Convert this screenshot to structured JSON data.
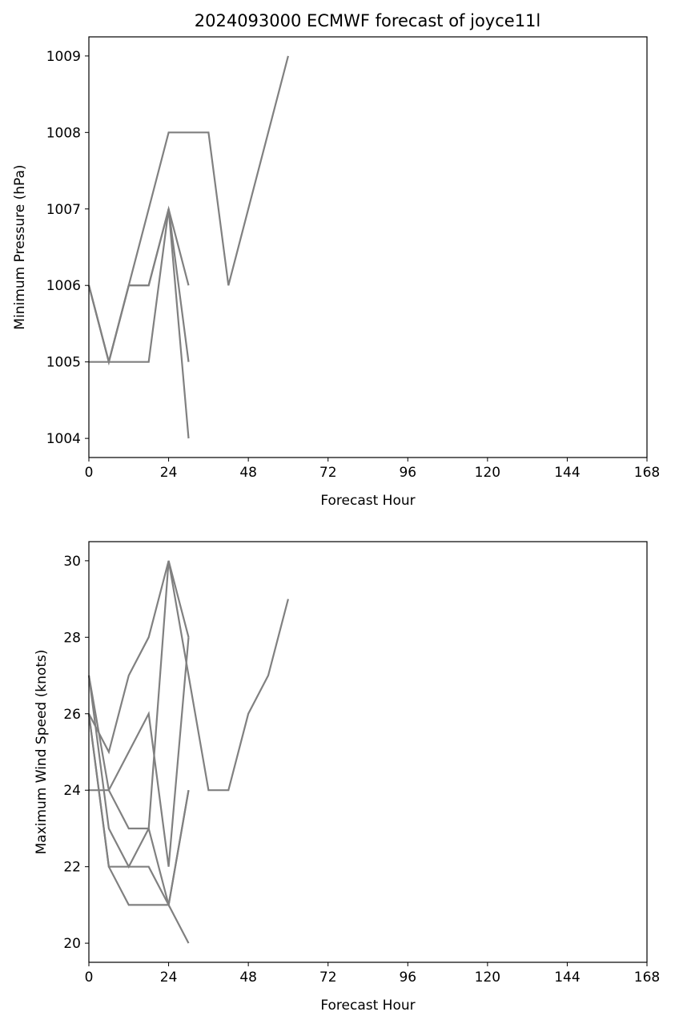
{
  "title": "2024093000 ECMWF forecast of joyce11l",
  "colors": {
    "series": "#808080",
    "axis": "#000000",
    "background": "#ffffff"
  },
  "chart_data": [
    {
      "type": "line",
      "title": "2024093000 ECMWF forecast of joyce11l",
      "xlabel": "Forecast Hour",
      "ylabel": "Minimum Pressure (hPa)",
      "xlim": [
        0,
        168
      ],
      "ylim": [
        1003.75,
        1009.25
      ],
      "xticks": [
        0,
        24,
        48,
        72,
        96,
        120,
        144,
        168
      ],
      "yticks": [
        1004,
        1005,
        1006,
        1007,
        1008,
        1009
      ],
      "grid": false,
      "series": [
        {
          "x": [
            0,
            6,
            12,
            18,
            24,
            30,
            36,
            42,
            48,
            54,
            60
          ],
          "y": [
            1006,
            1005,
            1006,
            1007,
            1008,
            1008,
            1008,
            1006,
            1007,
            1008,
            1009
          ]
        },
        {
          "x": [
            0,
            6,
            12,
            18,
            24,
            30
          ],
          "y": [
            1006,
            1005,
            1006,
            1006,
            1007,
            1006
          ]
        },
        {
          "x": [
            0,
            6,
            12,
            18,
            24,
            30
          ],
          "y": [
            1006,
            1005,
            1006,
            1006,
            1007,
            1005
          ]
        },
        {
          "x": [
            0,
            6,
            12,
            18,
            24,
            30
          ],
          "y": [
            1005,
            1005,
            1005,
            1005,
            1007,
            1004
          ]
        }
      ]
    },
    {
      "type": "line",
      "title": "",
      "xlabel": "Forecast Hour",
      "ylabel": "Maximum Wind Speed (knots)",
      "xlim": [
        0,
        168
      ],
      "ylim": [
        19.5,
        30.5
      ],
      "xticks": [
        0,
        24,
        48,
        72,
        96,
        120,
        144,
        168
      ],
      "yticks": [
        20,
        22,
        24,
        26,
        28,
        30
      ],
      "grid": false,
      "series": [
        {
          "x": [
            0,
            6,
            12,
            18,
            24,
            30,
            36,
            42,
            48,
            54,
            60
          ],
          "y": [
            26,
            25,
            27,
            28,
            30,
            27,
            24,
            24,
            26,
            27,
            29
          ]
        },
        {
          "x": [
            0,
            6,
            12,
            18,
            24,
            30
          ],
          "y": [
            24,
            24,
            25,
            26,
            22,
            28
          ]
        },
        {
          "x": [
            0,
            6,
            12,
            18,
            24,
            30
          ],
          "y": [
            27,
            24,
            23,
            23,
            30,
            28
          ]
        },
        {
          "x": [
            0,
            6,
            12,
            18,
            24,
            30
          ],
          "y": [
            27,
            23,
            22,
            23,
            21,
            24
          ]
        },
        {
          "x": [
            0,
            6,
            12,
            18,
            24,
            30
          ],
          "y": [
            26,
            22,
            22,
            22,
            21,
            24
          ]
        },
        {
          "x": [
            0,
            6,
            12,
            18,
            24,
            30
          ],
          "y": [
            26,
            22,
            21,
            21,
            21,
            20
          ]
        }
      ]
    }
  ]
}
